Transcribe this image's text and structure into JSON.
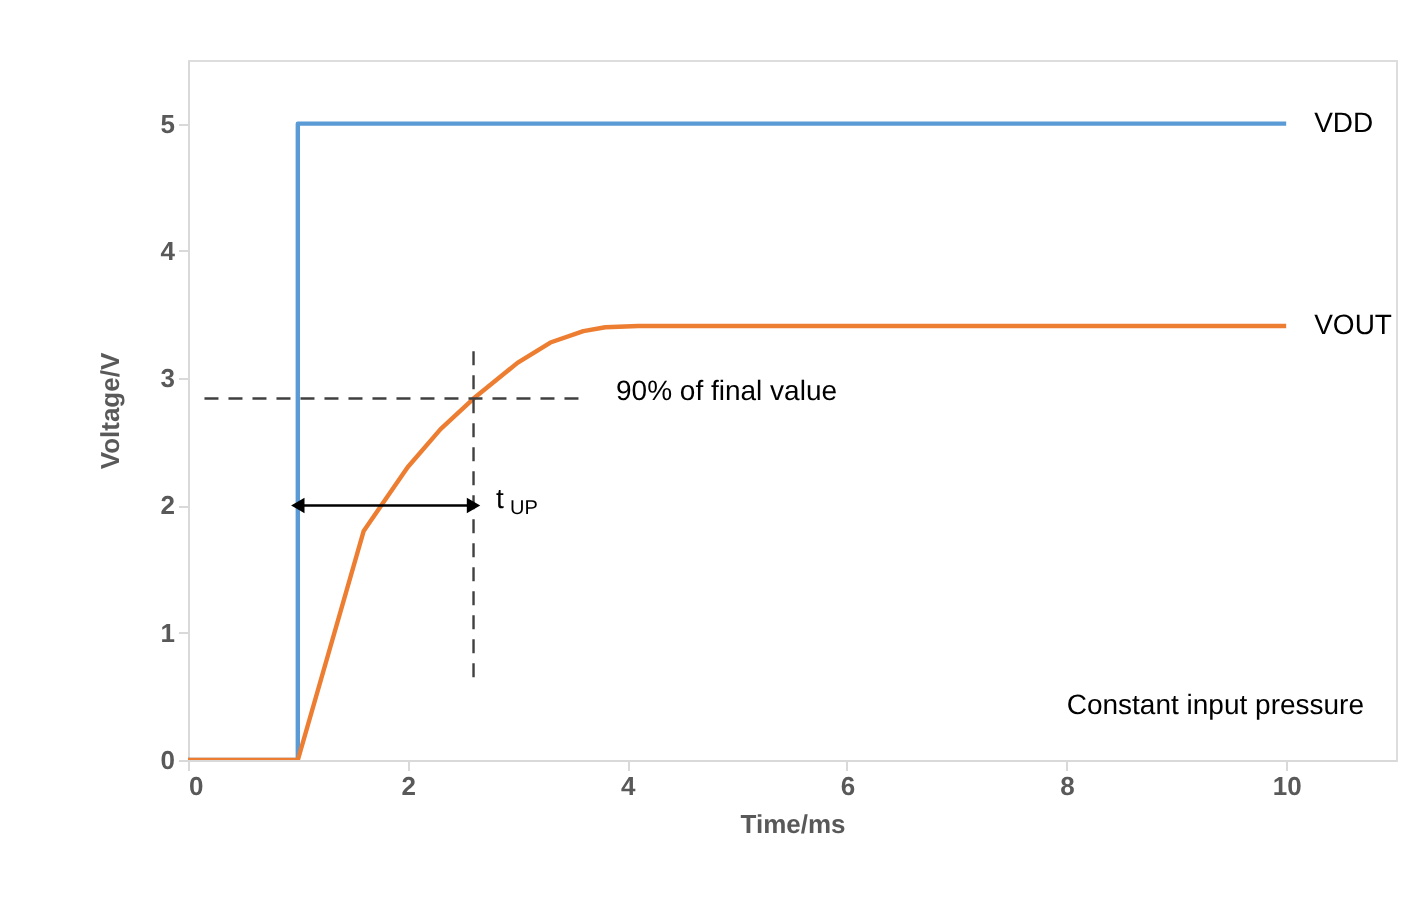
{
  "chart_data": {
    "type": "line",
    "xlabel": "Time/ms",
    "ylabel": "Voltage/V",
    "xlim": [
      0,
      11
    ],
    "xticks": [
      0,
      2,
      4,
      6,
      8,
      10
    ],
    "ylim": [
      0,
      5.5
    ],
    "yticks": [
      0,
      1,
      2,
      3,
      4,
      5
    ],
    "grid": false,
    "series": [
      {
        "name": "VDD",
        "color": "#5b9bd5",
        "x": [
          0,
          1,
          1,
          10
        ],
        "values": [
          0,
          0,
          5,
          5
        ]
      },
      {
        "name": "VOUT",
        "color": "#ed7d31",
        "x": [
          0,
          1,
          1.6,
          2.0,
          2.3,
          2.6,
          3.0,
          3.3,
          3.6,
          3.8,
          4.1,
          10
        ],
        "values": [
          0,
          0,
          1.8,
          2.3,
          2.6,
          2.84,
          3.12,
          3.28,
          3.37,
          3.4,
          3.41,
          3.41
        ]
      },
      {
        "type": "line",
        "color": "#404040",
        "line_style": "dashed",
        "x": [
          0.15,
          3.6
        ],
        "values": [
          2.84,
          2.84
        ]
      },
      {
        "type": "line",
        "color": "#404040",
        "line_style": "dashed",
        "x": [
          2.6,
          2.6
        ],
        "values": [
          0.65,
          3.25
        ]
      },
      {
        "type": "line",
        "color": "#000000",
        "marker": "triangle",
        "x": [
          1,
          2.6
        ],
        "values": [
          2.0,
          2.0
        ]
      }
    ],
    "annotations": [
      "90% of final value",
      "t$_{UP}$",
      "Constant input pressure"
    ]
  }
}
